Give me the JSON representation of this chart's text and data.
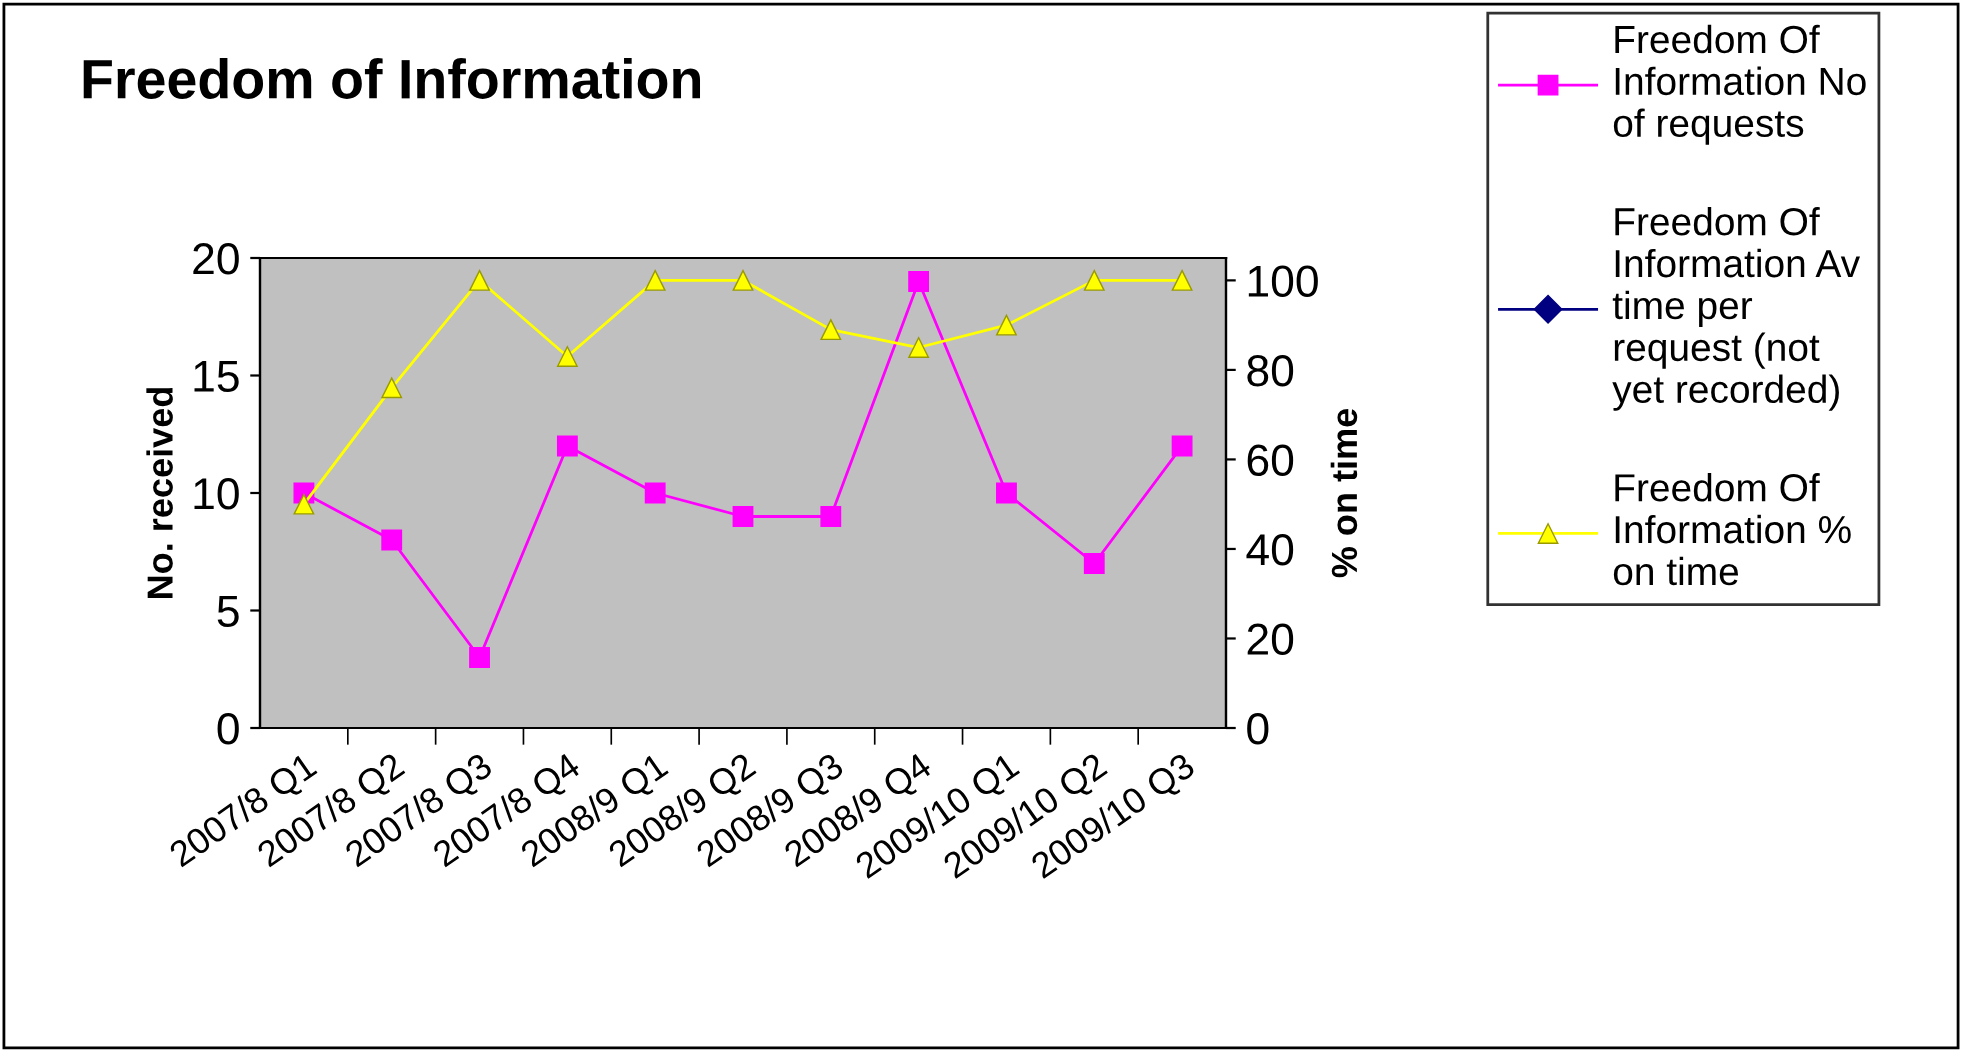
{
  "chart_data": {
    "type": "line",
    "title": "Freedom of Information",
    "ylabel": "No. received",
    "y2label": "% on time",
    "categories": [
      "2007/8 Q1",
      "2007/8 Q2",
      "2007/8 Q3",
      "2007/8 Q4",
      "2008/9 Q1",
      "2008/9 Q2",
      "2008/9 Q3",
      "2008/9 Q4",
      "2009/10 Q1",
      "2009/10 Q2",
      "2009/10 Q3"
    ],
    "series": [
      {
        "name": "Freedom Of Information No of requests",
        "color": "#ff00ff",
        "marker": "square",
        "values": [
          10,
          8,
          3,
          12,
          10,
          9,
          9,
          19,
          10,
          7,
          12
        ]
      },
      {
        "name": "Freedom Of Information Av time per request (not yet recorded)",
        "color": "#000080",
        "marker": "diamond",
        "values": [
          null,
          null,
          null,
          null,
          null,
          null,
          null,
          null,
          null,
          null,
          null
        ]
      },
      {
        "name": "Freedom Of Information % on time",
        "color": "#ffff00",
        "marker": "triangle",
        "axis": "y2",
        "values": [
          50,
          76,
          100,
          83,
          100,
          100,
          89,
          85,
          90,
          100,
          100
        ]
      }
    ],
    "ylim": [
      0,
      20
    ],
    "yticks": [
      0,
      5,
      10,
      15,
      20
    ],
    "y2lim": [
      0,
      105
    ],
    "y2ticks": [
      0,
      20,
      40,
      60,
      80,
      100
    ],
    "legend": "right",
    "grid": false,
    "line_style": "solid"
  }
}
